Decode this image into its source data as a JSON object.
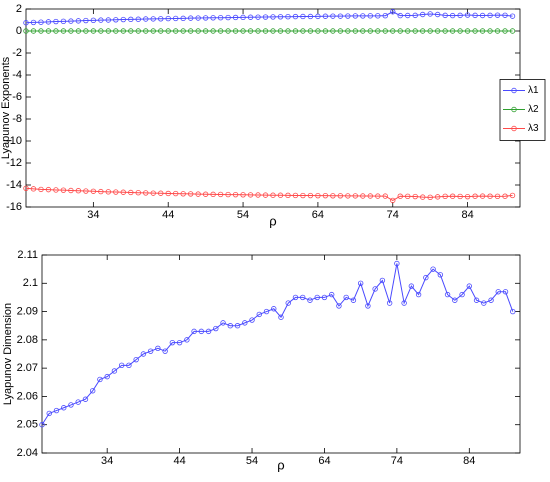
{
  "chart_data": [
    {
      "type": "line",
      "ylabel": "Lyapunov Exponents",
      "xlabel": "ρ",
      "x": [
        25,
        26,
        27,
        28,
        29,
        30,
        31,
        32,
        33,
        34,
        35,
        36,
        37,
        38,
        39,
        40,
        41,
        42,
        43,
        44,
        45,
        46,
        47,
        48,
        49,
        50,
        51,
        52,
        53,
        54,
        55,
        56,
        57,
        58,
        59,
        60,
        61,
        62,
        63,
        64,
        65,
        66,
        67,
        68,
        69,
        70,
        71,
        72,
        73,
        74,
        75,
        76,
        77,
        78,
        79,
        80,
        81,
        82,
        83,
        84,
        85,
        86,
        87,
        88,
        89,
        90
      ],
      "xlim": [
        25,
        91
      ],
      "xticks": [
        34,
        44,
        54,
        64,
        74,
        84
      ],
      "ylim": [
        -16,
        2
      ],
      "yticks": [
        -16,
        -14,
        -12,
        -10,
        -8,
        -6,
        -4,
        -2,
        0,
        2
      ],
      "legend": "right",
      "series": [
        {
          "name": "λ1",
          "color": "#4a4aff",
          "values": [
            0.75,
            0.78,
            0.8,
            0.83,
            0.86,
            0.88,
            0.9,
            0.92,
            0.95,
            0.97,
            0.99,
            1.0,
            1.02,
            1.04,
            1.06,
            1.07,
            1.09,
            1.1,
            1.11,
            1.13,
            1.14,
            1.15,
            1.17,
            1.18,
            1.19,
            1.2,
            1.21,
            1.22,
            1.23,
            1.24,
            1.25,
            1.26,
            1.27,
            1.28,
            1.29,
            1.3,
            1.31,
            1.32,
            1.32,
            1.33,
            1.34,
            1.35,
            1.35,
            1.36,
            1.37,
            1.37,
            1.38,
            1.38,
            1.39,
            1.75,
            1.4,
            1.41,
            1.42,
            1.5,
            1.55,
            1.5,
            1.42,
            1.4,
            1.42,
            1.45,
            1.42,
            1.41,
            1.42,
            1.44,
            1.43,
            1.35
          ]
        },
        {
          "name": "λ2",
          "color": "#2fa02f",
          "values": [
            0,
            0,
            0,
            0,
            0,
            0,
            0,
            0,
            0,
            0,
            0,
            0,
            0,
            0,
            0,
            0,
            0,
            0,
            0,
            0,
            0,
            0,
            0,
            0,
            0,
            0,
            0,
            0,
            0,
            0,
            0,
            0,
            0,
            0,
            0,
            0,
            0,
            0,
            0,
            0,
            0,
            0,
            0,
            0,
            0,
            0,
            0,
            0,
            0,
            0,
            0,
            0,
            0,
            0,
            0,
            0,
            0,
            0,
            0,
            0,
            0,
            0,
            0,
            0,
            0,
            0
          ]
        },
        {
          "name": "λ3",
          "color": "#ff4a4a",
          "values": [
            -14.3,
            -14.35,
            -14.4,
            -14.42,
            -14.45,
            -14.47,
            -14.5,
            -14.52,
            -14.55,
            -14.57,
            -14.6,
            -14.62,
            -14.64,
            -14.66,
            -14.68,
            -14.7,
            -14.72,
            -14.74,
            -14.75,
            -14.77,
            -14.78,
            -14.8,
            -14.81,
            -14.83,
            -14.84,
            -14.85,
            -14.86,
            -14.87,
            -14.88,
            -14.89,
            -14.9,
            -14.91,
            -14.92,
            -14.93,
            -14.93,
            -14.94,
            -14.95,
            -14.96,
            -14.96,
            -14.97,
            -14.97,
            -14.98,
            -14.98,
            -14.99,
            -14.99,
            -15.0,
            -15.0,
            -15.01,
            -15.01,
            -15.4,
            -15.02,
            -15.03,
            -15.05,
            -15.1,
            -15.12,
            -15.08,
            -15.03,
            -15.02,
            -15.04,
            -15.06,
            -15.02,
            -15.01,
            -15.02,
            -15.03,
            -15.02,
            -14.95
          ]
        }
      ]
    },
    {
      "type": "line",
      "ylabel": "Lyapunov Dimension",
      "xlabel": "ρ",
      "x": [
        25,
        26,
        27,
        28,
        29,
        30,
        31,
        32,
        33,
        34,
        35,
        36,
        37,
        38,
        39,
        40,
        41,
        42,
        43,
        44,
        45,
        46,
        47,
        48,
        49,
        50,
        51,
        52,
        53,
        54,
        55,
        56,
        57,
        58,
        59,
        60,
        61,
        62,
        63,
        64,
        65,
        66,
        67,
        68,
        69,
        70,
        71,
        72,
        73,
        74,
        75,
        76,
        77,
        78,
        79,
        80,
        81,
        82,
        83,
        84,
        85,
        86,
        87,
        88,
        89,
        90
      ],
      "xlim": [
        25,
        91
      ],
      "xticks": [
        34,
        44,
        54,
        64,
        74,
        84
      ],
      "ylim": [
        2.04,
        2.11
      ],
      "yticks": [
        2.04,
        2.05,
        2.06,
        2.07,
        2.08,
        2.09,
        2.1,
        2.11
      ],
      "color": "#4a4aff",
      "values": [
        2.05,
        2.054,
        2.055,
        2.056,
        2.057,
        2.058,
        2.059,
        2.062,
        2.066,
        2.067,
        2.069,
        2.071,
        2.071,
        2.073,
        2.075,
        2.076,
        2.077,
        2.076,
        2.079,
        2.079,
        2.08,
        2.083,
        2.083,
        2.083,
        2.084,
        2.086,
        2.085,
        2.085,
        2.086,
        2.087,
        2.089,
        2.09,
        2.091,
        2.088,
        2.093,
        2.095,
        2.095,
        2.094,
        2.095,
        2.095,
        2.096,
        2.092,
        2.095,
        2.094,
        2.1,
        2.092,
        2.098,
        2.101,
        2.093,
        2.107,
        2.093,
        2.099,
        2.096,
        2.102,
        2.105,
        2.103,
        2.096,
        2.094,
        2.096,
        2.099,
        2.094,
        2.093,
        2.094,
        2.097,
        2.097,
        2.09
      ]
    }
  ]
}
